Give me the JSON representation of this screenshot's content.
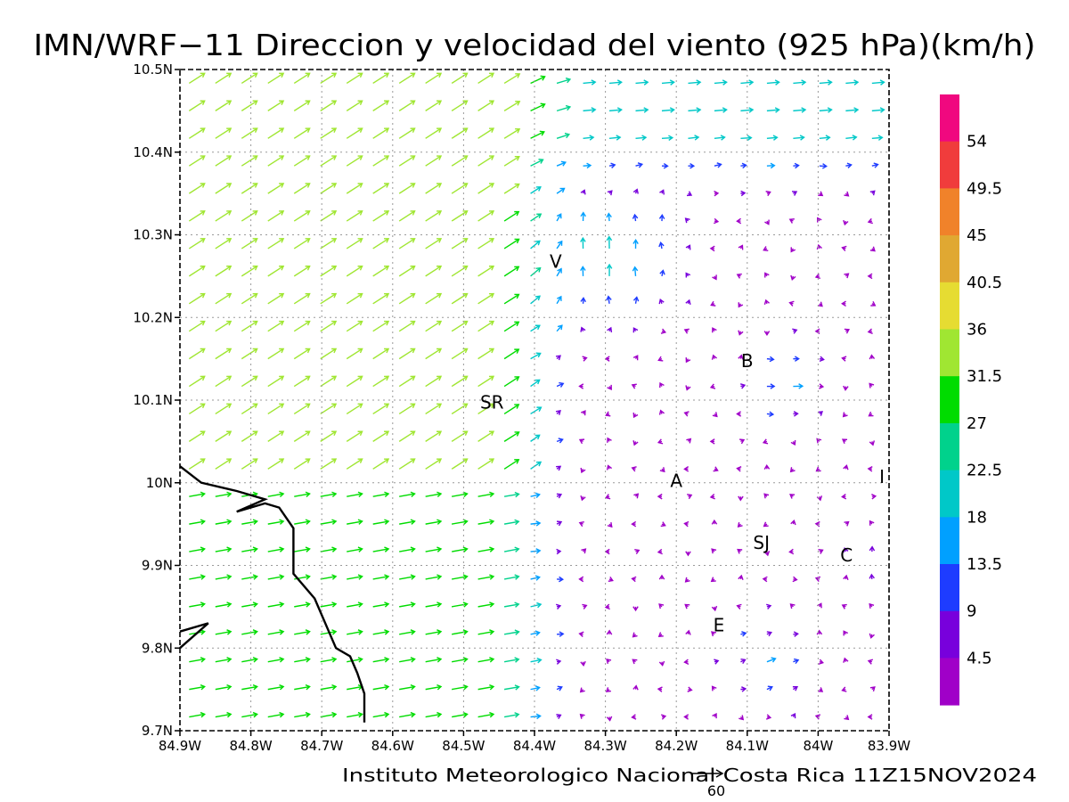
{
  "title": "IMN/WRF−11 Direccion y velocidad del viento (925 hPa)(km/h)",
  "footer": "Instituto Meteorologico Nacional Costa Rica 11Z15NOV2024",
  "reference_vector": {
    "value": "60"
  },
  "x_ticks": [
    "84.9W",
    "84.8W",
    "84.7W",
    "84.6W",
    "84.5W",
    "84.4W",
    "84.3W",
    "84.2W",
    "84.1W",
    "84W",
    "83.9W"
  ],
  "y_ticks": [
    "10.5N",
    "10.4N",
    "10.3N",
    "10.2N",
    "10.1N",
    "10N",
    "9.9N",
    "9.8N",
    "9.7N"
  ],
  "colorbar": {
    "labels": [
      "54",
      "49.5",
      "45",
      "40.5",
      "36",
      "31.5",
      "27",
      "22.5",
      "18",
      "13.5",
      "9",
      "4.5"
    ],
    "colors": [
      "#f0087f",
      "#f03c3c",
      "#f0822a",
      "#e0a832",
      "#e6dc32",
      "#a0e632",
      "#00dc00",
      "#00d28c",
      "#00c8c8",
      "#00a0ff",
      "#1e3cff",
      "#7800dc",
      "#a000c8"
    ]
  },
  "place_labels": [
    {
      "text": "V",
      "lon": -84.37,
      "lat": 10.26
    },
    {
      "text": "B",
      "lon": -84.1,
      "lat": 10.14
    },
    {
      "text": "SR",
      "lon": -84.46,
      "lat": 10.09
    },
    {
      "text": "A",
      "lon": -84.2,
      "lat": 9.995
    },
    {
      "text": "I",
      "lon": -83.91,
      "lat": 10.0
    },
    {
      "text": "SJ",
      "lon": -84.08,
      "lat": 9.92
    },
    {
      "text": "C",
      "lon": -83.96,
      "lat": 9.905
    },
    {
      "text": "E",
      "lon": -84.14,
      "lat": 9.82
    }
  ],
  "coastline": [
    [
      -84.9,
      10.02
    ],
    [
      -84.87,
      10.0
    ],
    [
      -84.82,
      9.99
    ],
    [
      -84.78,
      9.98
    ],
    [
      -84.82,
      9.965
    ],
    [
      -84.78,
      9.975
    ],
    [
      -84.76,
      9.97
    ],
    [
      -84.74,
      9.945
    ],
    [
      -84.74,
      9.89
    ],
    [
      -84.71,
      9.86
    ],
    [
      -84.68,
      9.8
    ],
    [
      -84.66,
      9.79
    ],
    [
      -84.65,
      9.77
    ],
    [
      -84.64,
      9.745
    ],
    [
      -84.64,
      9.71
    ]
  ],
  "coastline2": [
    [
      -84.9,
      9.82
    ],
    [
      -84.86,
      9.83
    ],
    [
      -84.9,
      9.8
    ]
  ]
}
